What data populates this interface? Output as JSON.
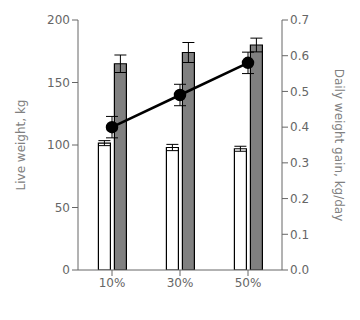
{
  "chart_data": {
    "type": "bar",
    "categories": [
      "10%",
      "30%",
      "50%"
    ],
    "ylabel": "Live weight, kg",
    "y2label": "Daily weight gain,  kg/day",
    "ylim": [
      0,
      200
    ],
    "yticks": [
      0,
      50,
      100,
      150,
      200
    ],
    "y2lim": [
      0,
      0.7
    ],
    "y2ticks": [
      {
        "value": 0,
        "label": "0.0"
      },
      0.1,
      0.2,
      0.3,
      0.4,
      0.5,
      0.6,
      0.7
    ],
    "grid": false,
    "series": [
      {
        "type": "bar",
        "color": "#ffffff",
        "values": [
          101.5,
          98.0,
          97.0
        ],
        "errors": [
          2.0,
          2.5,
          2.0
        ]
      },
      {
        "type": "bar",
        "color": "#808080",
        "values": [
          165.0,
          174.0,
          180.0
        ],
        "errors": [
          7.0,
          8.0,
          5.5
        ]
      },
      {
        "type": "line",
        "axis": "y2",
        "color": "#000000",
        "marker": "circle",
        "line_style": "solid",
        "values": [
          0.4,
          0.49,
          0.58
        ],
        "errors": [
          0.03,
          0.03,
          0.03
        ]
      }
    ]
  }
}
